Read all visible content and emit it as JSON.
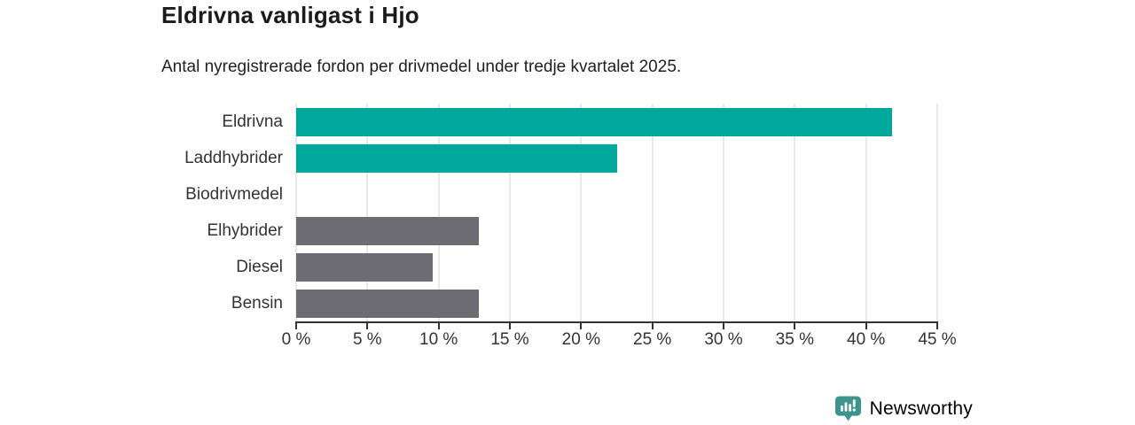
{
  "title": "Eldrivna vanligast i Hjo",
  "subtitle": "Antal nyregistrerade fordon per drivmedel under tredje kvartalet 2025.",
  "chart_data": {
    "type": "bar",
    "orientation": "horizontal",
    "title": "Eldrivna vanligast i Hjo",
    "subtitle": "Antal nyregistrerade fordon per drivmedel under tredje kvartalet 2025.",
    "categories": [
      "Eldrivna",
      "Laddhybrider",
      "Biodrivmedel",
      "Elhybrider",
      "Diesel",
      "Bensin"
    ],
    "values": [
      41.8,
      22.5,
      0,
      12.8,
      9.6,
      12.8
    ],
    "unit": "%",
    "xlim": [
      0,
      45
    ],
    "x_ticks": [
      "0 %",
      "5 %",
      "10 %",
      "15 %",
      "20 %",
      "25 %",
      "30 %",
      "35 %",
      "40 %",
      "45 %"
    ],
    "x_tick_values": [
      0,
      5,
      10,
      15,
      20,
      25,
      30,
      35,
      40,
      45
    ],
    "bar_colors": [
      "#00a79b",
      "#00a79b",
      "#00a79b",
      "#6c6c72",
      "#6c6c72",
      "#6c6c72"
    ],
    "grid": true,
    "legend": false
  },
  "colors": {
    "accent_teal": "#00a79b",
    "neutral_gray": "#6c6c72",
    "axis": "#333333",
    "gridline": "#e9e9e9",
    "brand_teal": "#3e948c"
  },
  "footer": {
    "brand": "Newsworthy",
    "logo_icon": "bar-chart-pin-icon"
  }
}
